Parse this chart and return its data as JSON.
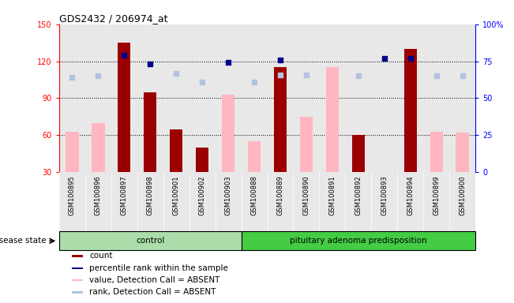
{
  "title": "GDS2432 / 206974_at",
  "samples": [
    "GSM100895",
    "GSM100896",
    "GSM100897",
    "GSM100898",
    "GSM100901",
    "GSM100902",
    "GSM100903",
    "GSM100888",
    "GSM100889",
    "GSM100890",
    "GSM100891",
    "GSM100892",
    "GSM100893",
    "GSM100894",
    "GSM100899",
    "GSM100900"
  ],
  "count": [
    0,
    0,
    135,
    95,
    65,
    50,
    0,
    0,
    115,
    0,
    0,
    60,
    0,
    130,
    0,
    0
  ],
  "value_absent": [
    63,
    70,
    0,
    0,
    0,
    0,
    93,
    55,
    0,
    75,
    115,
    0,
    0,
    0,
    63,
    62
  ],
  "percentile_rank": [
    0,
    0,
    125,
    118,
    0,
    0,
    119,
    0,
    121,
    0,
    0,
    0,
    122,
    122,
    0,
    0
  ],
  "rank_absent": [
    107,
    108,
    0,
    0,
    110,
    103,
    0,
    103,
    109,
    109,
    0,
    108,
    0,
    0,
    108,
    108
  ],
  "ylim": [
    30,
    150
  ],
  "yticks": [
    30,
    60,
    90,
    120,
    150
  ],
  "y2ticks_labels": [
    "0",
    "25",
    "50",
    "75",
    "100%"
  ],
  "y2ticks_vals": [
    0,
    25,
    50,
    75,
    100
  ],
  "color_count": "#9b0000",
  "color_percentile": "#00008b",
  "color_value_absent": "#ffb6c1",
  "color_rank_absent": "#b0c4de",
  "control_color": "#aaddaa",
  "pit_color": "#44cc44",
  "control_count": 7,
  "total_count": 16,
  "bar_width": 0.5,
  "plot_bg": "#e8e8e8",
  "dotted_lines": [
    60,
    90,
    120
  ]
}
